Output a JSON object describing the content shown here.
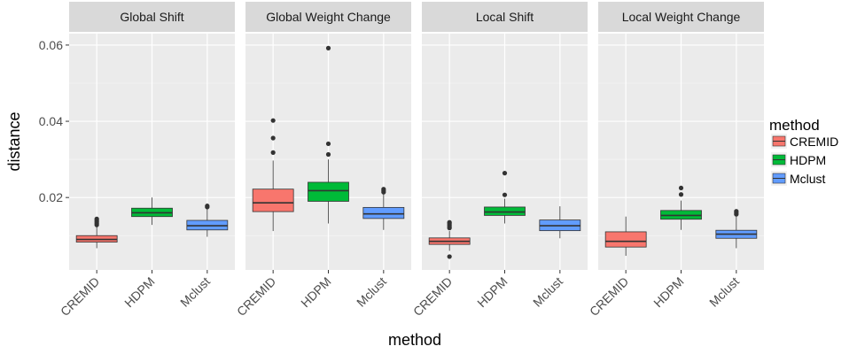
{
  "chart_data": {
    "type": "boxplot",
    "xlabel": "method",
    "ylabel": "distance",
    "ylim": [
      0.001,
      0.063
    ],
    "y_ticks": [
      {
        "value": 0.02,
        "label": "0.02"
      },
      {
        "value": 0.04,
        "label": "0.04"
      },
      {
        "value": 0.06,
        "label": "0.06"
      }
    ],
    "categories": [
      "CREMID",
      "HDPM",
      "Mclust"
    ],
    "legend": {
      "title": "method",
      "position": "right",
      "items": [
        {
          "label": "CREMID",
          "color": "#f8766d"
        },
        {
          "label": "HDPM",
          "color": "#00ba38"
        },
        {
          "label": "Mclust",
          "color": "#619cff"
        }
      ]
    },
    "grid": true,
    "panels": [
      {
        "title": "Global Shift",
        "boxes": [
          {
            "method": "CREMID",
            "q1": 0.0083,
            "median": 0.009,
            "q3": 0.01,
            "whisker_low": 0.0067,
            "whisker_high": 0.0124,
            "outliers": [
              0.0128,
              0.0132,
              0.0136,
              0.014,
              0.0144
            ]
          },
          {
            "method": "HDPM",
            "q1": 0.015,
            "median": 0.016,
            "q3": 0.0172,
            "whisker_low": 0.0128,
            "whisker_high": 0.02,
            "outliers": []
          },
          {
            "method": "Mclust",
            "q1": 0.0115,
            "median": 0.0126,
            "q3": 0.014,
            "whisker_low": 0.0097,
            "whisker_high": 0.0172,
            "outliers": [
              0.0175,
              0.0178
            ]
          }
        ]
      },
      {
        "title": "Global Weight Change",
        "boxes": [
          {
            "method": "CREMID",
            "q1": 0.0163,
            "median": 0.0186,
            "q3": 0.0222,
            "whisker_low": 0.0112,
            "whisker_high": 0.0297,
            "outliers": [
              0.0318,
              0.0356,
              0.0402
            ]
          },
          {
            "method": "HDPM",
            "q1": 0.019,
            "median": 0.0218,
            "q3": 0.024,
            "whisker_low": 0.0132,
            "whisker_high": 0.03,
            "outliers": [
              0.0313,
              0.0341,
              0.0592
            ]
          },
          {
            "method": "Mclust",
            "q1": 0.0145,
            "median": 0.0157,
            "q3": 0.0174,
            "whisker_low": 0.0115,
            "whisker_high": 0.021,
            "outliers": [
              0.0214,
              0.0218,
              0.0222
            ]
          }
        ]
      },
      {
        "title": "Local Shift",
        "boxes": [
          {
            "method": "CREMID",
            "q1": 0.0077,
            "median": 0.0085,
            "q3": 0.0094,
            "whisker_low": 0.006,
            "whisker_high": 0.0112,
            "outliers": [
              0.0045,
              0.012,
              0.0124,
              0.0128,
              0.0132,
              0.0135
            ]
          },
          {
            "method": "HDPM",
            "q1": 0.0153,
            "median": 0.0162,
            "q3": 0.0175,
            "whisker_low": 0.0132,
            "whisker_high": 0.0197,
            "outliers": [
              0.0207,
              0.0264
            ]
          },
          {
            "method": "Mclust",
            "q1": 0.0113,
            "median": 0.0126,
            "q3": 0.0141,
            "whisker_low": 0.0093,
            "whisker_high": 0.0177,
            "outliers": []
          }
        ]
      },
      {
        "title": "Local Weight Change",
        "boxes": [
          {
            "method": "CREMID",
            "q1": 0.007,
            "median": 0.0085,
            "q3": 0.011,
            "whisker_low": 0.0047,
            "whisker_high": 0.015,
            "outliers": []
          },
          {
            "method": "HDPM",
            "q1": 0.0143,
            "median": 0.0153,
            "q3": 0.0166,
            "whisker_low": 0.0115,
            "whisker_high": 0.0192,
            "outliers": [
              0.0208,
              0.0225
            ]
          },
          {
            "method": "Mclust",
            "q1": 0.0093,
            "median": 0.0104,
            "q3": 0.0114,
            "whisker_low": 0.0067,
            "whisker_high": 0.015,
            "outliers": [
              0.0156,
              0.016,
              0.0164
            ]
          }
        ]
      }
    ]
  }
}
